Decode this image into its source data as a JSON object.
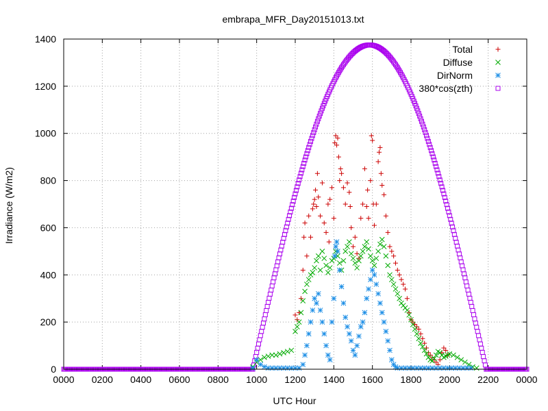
{
  "chart_data": {
    "type": "scatter",
    "title": "embrapa_MFR_Day20151013.txt",
    "xlabel": "UTC Hour",
    "ylabel": "Irradiance (W/m2)",
    "xlim": [
      0,
      24
    ],
    "ylim": [
      0,
      1400
    ],
    "x_ticks": [
      {
        "value": 0,
        "label": "0000"
      },
      {
        "value": 2,
        "label": "0200"
      },
      {
        "value": 4,
        "label": "0400"
      },
      {
        "value": 6,
        "label": "0600"
      },
      {
        "value": 8,
        "label": "0800"
      },
      {
        "value": 10,
        "label": "1000"
      },
      {
        "value": 12,
        "label": "1200"
      },
      {
        "value": 14,
        "label": "1400"
      },
      {
        "value": 16,
        "label": "1600"
      },
      {
        "value": 18,
        "label": "1800"
      },
      {
        "value": 20,
        "label": "2000"
      },
      {
        "value": 22,
        "label": "2200"
      },
      {
        "value": 24,
        "label": "0000"
      }
    ],
    "y_ticks": [
      {
        "value": 0,
        "label": "0"
      },
      {
        "value": 200,
        "label": "200"
      },
      {
        "value": 400,
        "label": "400"
      },
      {
        "value": 600,
        "label": "600"
      },
      {
        "value": 800,
        "label": "800"
      },
      {
        "value": 1000,
        "label": "1000"
      },
      {
        "value": 1200,
        "label": "1200"
      },
      {
        "value": 1400,
        "label": "1400"
      }
    ],
    "grid": true,
    "legend_position": "top-right",
    "series": [
      {
        "name": "Total",
        "marker": "plus",
        "color": "#cc0000",
        "points": [
          [
            12.0,
            230
          ],
          [
            12.1,
            210
          ],
          [
            12.2,
            240
          ],
          [
            12.3,
            300
          ],
          [
            12.4,
            420
          ],
          [
            12.45,
            560
          ],
          [
            12.5,
            620
          ],
          [
            12.6,
            480
          ],
          [
            12.7,
            650
          ],
          [
            12.8,
            560
          ],
          [
            12.9,
            680
          ],
          [
            12.95,
            700
          ],
          [
            13.0,
            720
          ],
          [
            13.05,
            760
          ],
          [
            13.1,
            690
          ],
          [
            13.15,
            830
          ],
          [
            13.2,
            730
          ],
          [
            13.3,
            650
          ],
          [
            13.4,
            790
          ],
          [
            13.5,
            620
          ],
          [
            13.6,
            580
          ],
          [
            13.7,
            700
          ],
          [
            13.75,
            540
          ],
          [
            13.8,
            720
          ],
          [
            13.9,
            770
          ],
          [
            14.0,
            640
          ],
          [
            14.05,
            960
          ],
          [
            14.1,
            990
          ],
          [
            14.15,
            950
          ],
          [
            14.2,
            980
          ],
          [
            14.25,
            900
          ],
          [
            14.3,
            800
          ],
          [
            14.35,
            850
          ],
          [
            14.4,
            830
          ],
          [
            14.5,
            770
          ],
          [
            14.6,
            700
          ],
          [
            14.7,
            790
          ],
          [
            14.8,
            750
          ],
          [
            14.85,
            690
          ],
          [
            14.9,
            600
          ],
          [
            15.0,
            520
          ],
          [
            15.1,
            560
          ],
          [
            15.2,
            490
          ],
          [
            15.3,
            470
          ],
          [
            15.4,
            640
          ],
          [
            15.5,
            700
          ],
          [
            15.6,
            850
          ],
          [
            15.7,
            690
          ],
          [
            15.75,
            760
          ],
          [
            15.8,
            640
          ],
          [
            15.9,
            800
          ],
          [
            15.95,
            990
          ],
          [
            16.0,
            970
          ],
          [
            16.05,
            700
          ],
          [
            16.1,
            610
          ],
          [
            16.2,
            700
          ],
          [
            16.3,
            880
          ],
          [
            16.35,
            920
          ],
          [
            16.4,
            940
          ],
          [
            16.45,
            830
          ],
          [
            16.5,
            780
          ],
          [
            16.6,
            740
          ],
          [
            16.7,
            650
          ],
          [
            16.8,
            580
          ],
          [
            16.9,
            520
          ],
          [
            17.0,
            500
          ],
          [
            17.1,
            480
          ],
          [
            17.2,
            450
          ],
          [
            17.3,
            420
          ],
          [
            17.4,
            400
          ],
          [
            17.5,
            380
          ],
          [
            17.6,
            360
          ],
          [
            17.7,
            340
          ],
          [
            17.8,
            300
          ],
          [
            17.9,
            240
          ],
          [
            18.0,
            210
          ],
          [
            18.1,
            200
          ],
          [
            18.2,
            190
          ],
          [
            18.3,
            180
          ],
          [
            18.4,
            170
          ],
          [
            18.5,
            150
          ],
          [
            18.6,
            130
          ],
          [
            18.7,
            110
          ],
          [
            18.8,
            90
          ],
          [
            18.9,
            70
          ],
          [
            19.0,
            60
          ],
          [
            19.1,
            50
          ],
          [
            19.2,
            40
          ],
          [
            19.3,
            30
          ],
          [
            19.4,
            20
          ],
          [
            19.5,
            40
          ],
          [
            19.6,
            70
          ],
          [
            19.7,
            90
          ],
          [
            19.8,
            80
          ],
          [
            19.9,
            60
          ]
        ]
      },
      {
        "name": "Diffuse",
        "marker": "cross",
        "color": "#00aa00",
        "points": [
          [
            9.8,
            10
          ],
          [
            10.0,
            30
          ],
          [
            10.2,
            40
          ],
          [
            10.4,
            50
          ],
          [
            10.6,
            55
          ],
          [
            10.8,
            60
          ],
          [
            11.0,
            60
          ],
          [
            11.2,
            65
          ],
          [
            11.4,
            70
          ],
          [
            11.6,
            75
          ],
          [
            11.8,
            80
          ],
          [
            12.0,
            160
          ],
          [
            12.1,
            180
          ],
          [
            12.2,
            200
          ],
          [
            12.3,
            240
          ],
          [
            12.4,
            290
          ],
          [
            12.5,
            330
          ],
          [
            12.6,
            360
          ],
          [
            12.7,
            380
          ],
          [
            12.8,
            400
          ],
          [
            12.9,
            410
          ],
          [
            13.0,
            430
          ],
          [
            13.1,
            460
          ],
          [
            13.2,
            480
          ],
          [
            13.3,
            420
          ],
          [
            13.4,
            500
          ],
          [
            13.5,
            470
          ],
          [
            13.6,
            440
          ],
          [
            13.7,
            410
          ],
          [
            13.8,
            430
          ],
          [
            13.9,
            460
          ],
          [
            14.0,
            470
          ],
          [
            14.1,
            500
          ],
          [
            14.2,
            480
          ],
          [
            14.3,
            450
          ],
          [
            14.4,
            420
          ],
          [
            14.5,
            460
          ],
          [
            14.6,
            500
          ],
          [
            14.7,
            520
          ],
          [
            14.8,
            540
          ],
          [
            14.9,
            490
          ],
          [
            15.0,
            470
          ],
          [
            15.1,
            450
          ],
          [
            15.2,
            430
          ],
          [
            15.3,
            460
          ],
          [
            15.4,
            480
          ],
          [
            15.5,
            500
          ],
          [
            15.6,
            520
          ],
          [
            15.7,
            540
          ],
          [
            15.8,
            510
          ],
          [
            15.9,
            480
          ],
          [
            16.0,
            460
          ],
          [
            16.1,
            440
          ],
          [
            16.2,
            470
          ],
          [
            16.3,
            500
          ],
          [
            16.4,
            530
          ],
          [
            16.5,
            550
          ],
          [
            16.6,
            520
          ],
          [
            16.7,
            480
          ],
          [
            16.8,
            440
          ],
          [
            16.9,
            400
          ],
          [
            17.0,
            380
          ],
          [
            17.1,
            360
          ],
          [
            17.2,
            340
          ],
          [
            17.3,
            320
          ],
          [
            17.4,
            300
          ],
          [
            17.5,
            280
          ],
          [
            17.6,
            270
          ],
          [
            17.7,
            260
          ],
          [
            17.8,
            250
          ],
          [
            17.9,
            230
          ],
          [
            18.0,
            210
          ],
          [
            18.1,
            190
          ],
          [
            18.2,
            170
          ],
          [
            18.3,
            150
          ],
          [
            18.4,
            130
          ],
          [
            18.5,
            110
          ],
          [
            18.6,
            95
          ],
          [
            18.7,
            80
          ],
          [
            18.8,
            65
          ],
          [
            18.9,
            50
          ],
          [
            19.0,
            40
          ],
          [
            19.1,
            35
          ],
          [
            19.2,
            45
          ],
          [
            19.3,
            60
          ],
          [
            19.4,
            75
          ],
          [
            19.5,
            70
          ],
          [
            19.6,
            60
          ],
          [
            19.7,
            50
          ],
          [
            19.8,
            55
          ],
          [
            19.9,
            60
          ],
          [
            20.0,
            65
          ],
          [
            20.2,
            60
          ],
          [
            20.4,
            50
          ],
          [
            20.6,
            40
          ],
          [
            20.8,
            30
          ],
          [
            21.0,
            20
          ],
          [
            21.2,
            10
          ],
          [
            21.4,
            5
          ]
        ]
      },
      {
        "name": "DirNorm",
        "marker": "star",
        "color": "#1e8fe6",
        "points": [
          [
            9.8,
            5
          ],
          [
            10.0,
            40
          ],
          [
            10.2,
            20
          ],
          [
            10.4,
            10
          ],
          [
            10.6,
            5
          ],
          [
            10.8,
            5
          ],
          [
            11.0,
            5
          ],
          [
            11.2,
            5
          ],
          [
            11.4,
            5
          ],
          [
            11.6,
            5
          ],
          [
            11.8,
            5
          ],
          [
            12.0,
            5
          ],
          [
            12.2,
            5
          ],
          [
            12.4,
            20
          ],
          [
            12.5,
            60
          ],
          [
            12.6,
            100
          ],
          [
            12.7,
            150
          ],
          [
            12.8,
            200
          ],
          [
            12.9,
            250
          ],
          [
            13.0,
            300
          ],
          [
            13.1,
            280
          ],
          [
            13.2,
            320
          ],
          [
            13.3,
            250
          ],
          [
            13.4,
            200
          ],
          [
            13.5,
            150
          ],
          [
            13.6,
            100
          ],
          [
            13.7,
            60
          ],
          [
            13.8,
            40
          ],
          [
            13.9,
            200
          ],
          [
            14.0,
            300
          ],
          [
            14.05,
            480
          ],
          [
            14.1,
            520
          ],
          [
            14.15,
            540
          ],
          [
            14.2,
            500
          ],
          [
            14.3,
            420
          ],
          [
            14.4,
            350
          ],
          [
            14.5,
            280
          ],
          [
            14.6,
            220
          ],
          [
            14.7,
            180
          ],
          [
            14.8,
            150
          ],
          [
            14.9,
            120
          ],
          [
            15.0,
            80
          ],
          [
            15.1,
            60
          ],
          [
            15.2,
            100
          ],
          [
            15.3,
            140
          ],
          [
            15.4,
            180
          ],
          [
            15.5,
            200
          ],
          [
            15.6,
            240
          ],
          [
            15.7,
            300
          ],
          [
            15.8,
            340
          ],
          [
            15.9,
            380
          ],
          [
            16.0,
            420
          ],
          [
            16.1,
            400
          ],
          [
            16.2,
            360
          ],
          [
            16.3,
            320
          ],
          [
            16.4,
            280
          ],
          [
            16.5,
            240
          ],
          [
            16.6,
            200
          ],
          [
            16.7,
            160
          ],
          [
            16.8,
            120
          ],
          [
            16.9,
            80
          ],
          [
            17.0,
            40
          ],
          [
            17.1,
            20
          ],
          [
            17.2,
            10
          ],
          [
            17.3,
            5
          ],
          [
            17.5,
            5
          ],
          [
            17.7,
            5
          ],
          [
            17.9,
            5
          ],
          [
            18.1,
            5
          ],
          [
            18.3,
            5
          ],
          [
            18.5,
            5
          ],
          [
            18.7,
            5
          ],
          [
            18.9,
            5
          ],
          [
            19.1,
            5
          ],
          [
            19.3,
            5
          ],
          [
            19.5,
            5
          ],
          [
            19.7,
            5
          ],
          [
            19.9,
            5
          ],
          [
            20.1,
            5
          ],
          [
            20.3,
            5
          ],
          [
            20.5,
            5
          ],
          [
            20.7,
            5
          ],
          [
            20.9,
            5
          ],
          [
            21.1,
            5
          ]
        ]
      },
      {
        "name": "380*cos(zth)",
        "marker": "square",
        "color": "#aa00ee",
        "curve": {
          "x_start": 9.8,
          "x_end": 21.9,
          "peak": 1375,
          "zero_outside": true,
          "step": 0.05
        }
      }
    ]
  }
}
